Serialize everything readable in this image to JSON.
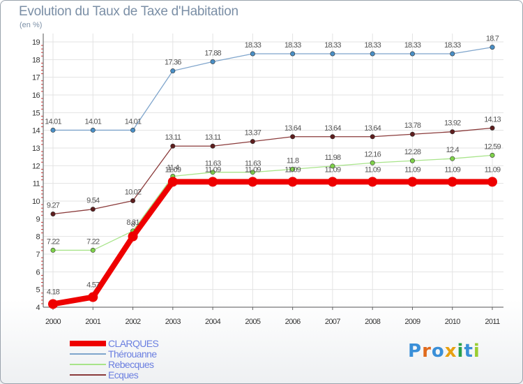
{
  "chart_data": {
    "type": "line",
    "title": "Evolution du Taux de Taxe d'Habitation",
    "subtitle": "(en %)",
    "x": [
      "2000",
      "2001",
      "2002",
      "2003",
      "2004",
      "2005",
      "2006",
      "2007",
      "2008",
      "2009",
      "2010",
      "2011"
    ],
    "ylim": [
      4,
      19
    ],
    "yticks": [
      "4",
      "5",
      "6",
      "7",
      "8",
      "9",
      "10",
      "11",
      "12",
      "13",
      "14",
      "15",
      "16",
      "17",
      "18",
      "19"
    ],
    "grid": true,
    "series": [
      {
        "name": "Thérouanne",
        "color": "#7fa5cc",
        "marker": "#4a8fc6",
        "values": [
          14.01,
          14.01,
          14.01,
          17.36,
          17.88,
          18.33,
          18.33,
          18.33,
          18.33,
          18.33,
          18.33,
          18.7
        ],
        "labels": [
          "14.01",
          "14.01",
          "14.01",
          "17.36",
          "17.88",
          "18.33",
          "18.33",
          "18.33",
          "18.33",
          "18.33",
          "18.33",
          "18.7"
        ]
      },
      {
        "name": "Ecques",
        "color": "#8a3a3a",
        "marker": "#5e1e1e",
        "values": [
          9.27,
          9.54,
          10.02,
          13.11,
          13.11,
          13.37,
          13.64,
          13.64,
          13.64,
          13.78,
          13.92,
          14.13
        ],
        "labels": [
          "9.27",
          "9.54",
          "10.02",
          "13.11",
          "13.11",
          "13.37",
          "13.64",
          "13.64",
          "13.64",
          "13.78",
          "13.92",
          "14.13"
        ]
      },
      {
        "name": "Rebecques",
        "color": "#a8e48a",
        "marker": "#7fd24a",
        "values": [
          7.22,
          7.22,
          8.31,
          11.4,
          11.63,
          11.63,
          11.8,
          11.98,
          12.16,
          12.28,
          12.4,
          12.59
        ],
        "labels": [
          "7.22",
          "7.22",
          "8.31",
          "11.4",
          "11.63",
          "11.63",
          "11.8",
          "11.98",
          "12.16",
          "12.28",
          "12.4",
          "12.59"
        ]
      },
      {
        "name": "CLARQUES",
        "color": "#ee0000",
        "marker": "#ee0000",
        "values": [
          4.18,
          4.57,
          8,
          11.09,
          11.09,
          11.09,
          11.09,
          11.09,
          11.09,
          11.09,
          11.09,
          11.09
        ],
        "labels": [
          "4.18",
          "4.57",
          "8",
          "11.09",
          "11.09",
          "11.09",
          "11.09",
          "11.09",
          "11.09",
          "11.09",
          "11.09",
          "11.09"
        ]
      }
    ]
  },
  "legend": [
    {
      "name": "CLARQUES",
      "color": "#ee0000",
      "thick": true
    },
    {
      "name": "Thérouanne",
      "color": "#7fa5cc",
      "thick": false
    },
    {
      "name": "Rebecques",
      "color": "#a8e48a",
      "thick": false
    },
    {
      "name": "Ecques",
      "color": "#8a3a3a",
      "thick": false
    }
  ],
  "logo": {
    "letters": [
      "P",
      "r",
      "o",
      "x",
      "i",
      "t",
      "i"
    ],
    "colors": [
      "#3a8fd8",
      "#e06a1c",
      "#3a8fd8",
      "#e8a010",
      "#2aa04a",
      "#3a8fd8",
      "#9acd32"
    ]
  }
}
